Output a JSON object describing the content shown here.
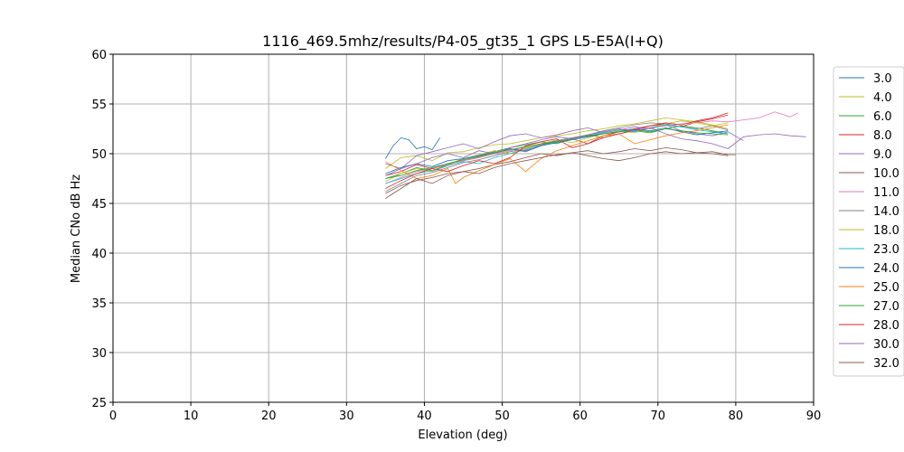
{
  "chart_data": {
    "type": "line",
    "title": "1116_469.5mhz/results/P4-05_gt35_1 GPS L5-E5A(I+Q)",
    "xlabel": "Elevation (deg)",
    "ylabel": "Median CNo dB Hz",
    "xlim": [
      0,
      90
    ],
    "ylim": [
      25,
      60
    ],
    "xticks": [
      0,
      10,
      20,
      30,
      40,
      50,
      60,
      70,
      80,
      90
    ],
    "yticks": [
      25,
      30,
      35,
      40,
      45,
      50,
      55,
      60
    ],
    "grid": true,
    "legend_position": "right",
    "series": [
      {
        "name": "3.0",
        "color": "#1f77b4",
        "x": [
          35,
          36,
          37,
          38,
          39,
          40,
          41,
          42
        ],
        "y": [
          49.5,
          50.8,
          51.6,
          51.4,
          50.5,
          50.7,
          50.4,
          51.6
        ]
      },
      {
        "name": "4.0",
        "color": "#bcbd22",
        "x": [
          35,
          37,
          39,
          41,
          43,
          45,
          47,
          49,
          51,
          53,
          55,
          57,
          59,
          61,
          63,
          65,
          67,
          69,
          71,
          73,
          75,
          77,
          79
        ],
        "y": [
          48.5,
          49.6,
          49.8,
          49.3,
          50.1,
          50.2,
          50.6,
          50.9,
          51.0,
          51.3,
          51.6,
          51.8,
          52.0,
          52.3,
          52.5,
          52.8,
          53.0,
          53.3,
          53.6,
          53.4,
          53.2,
          52.9,
          52.5
        ]
      },
      {
        "name": "6.0",
        "color": "#2ca02c",
        "x": [
          35,
          37,
          39,
          41,
          43,
          45,
          47,
          49,
          51,
          53,
          55,
          57,
          59,
          61,
          63,
          65,
          67,
          69,
          71,
          73,
          75,
          77,
          79
        ],
        "y": [
          47.5,
          48.0,
          48.6,
          48.3,
          48.9,
          49.5,
          49.8,
          50.2,
          50.6,
          50.9,
          51.2,
          51.0,
          51.5,
          51.9,
          51.6,
          52.0,
          52.3,
          52.1,
          52.5,
          52.8,
          52.6,
          52.3,
          52.0
        ]
      },
      {
        "name": "8.0",
        "color": "#d62728",
        "x": [
          35,
          37,
          39,
          41,
          43,
          45,
          47,
          49,
          51,
          53,
          55,
          57,
          59,
          61,
          63,
          65,
          67,
          69,
          71,
          73,
          75,
          77,
          79
        ],
        "y": [
          47.8,
          48.2,
          48.9,
          48.5,
          49.0,
          49.3,
          49.6,
          50.0,
          50.5,
          50.3,
          50.9,
          51.2,
          51.5,
          51.0,
          51.8,
          52.2,
          52.5,
          52.8,
          53.0,
          52.7,
          53.2,
          53.5,
          53.9
        ]
      },
      {
        "name": "9.0",
        "color": "#9467bd",
        "x": [
          35,
          37,
          39,
          41,
          43,
          45,
          47,
          49,
          51,
          53,
          55,
          57,
          59,
          61,
          63,
          65,
          67,
          69,
          71,
          73,
          75,
          77,
          79,
          81
        ],
        "y": [
          49.0,
          48.5,
          49.8,
          50.2,
          50.6,
          51.0,
          50.5,
          51.2,
          51.8,
          52.0,
          51.6,
          51.9,
          52.3,
          52.6,
          52.1,
          52.4,
          52.7,
          52.5,
          52.9,
          52.3,
          52.0,
          51.8,
          52.2,
          51.3
        ]
      },
      {
        "name": "10.0",
        "color": "#8c564b",
        "x": [
          35,
          37,
          39,
          41,
          43,
          45,
          47,
          49,
          51,
          53,
          55,
          57,
          59,
          61,
          63,
          65,
          67,
          69,
          71,
          73,
          75,
          77,
          79
        ],
        "y": [
          46.0,
          46.8,
          47.3,
          47.6,
          48.0,
          48.2,
          48.5,
          48.9,
          49.2,
          49.6,
          50.0,
          49.8,
          50.1,
          50.3,
          50.0,
          50.2,
          50.5,
          50.3,
          50.6,
          50.4,
          50.1,
          50.0,
          49.8
        ]
      },
      {
        "name": "11.0",
        "color": "#e377c2",
        "x": [
          35,
          37,
          39,
          41,
          43,
          45,
          47,
          49,
          51,
          53,
          55,
          57,
          59,
          61,
          63,
          65,
          67,
          69,
          71,
          73,
          75,
          77,
          79,
          81,
          83,
          85,
          87,
          88
        ],
        "y": [
          47.0,
          47.6,
          48.2,
          48.5,
          48.9,
          49.3,
          49.6,
          50.0,
          50.3,
          50.7,
          51.0,
          51.3,
          51.6,
          51.8,
          52.0,
          52.3,
          52.5,
          52.6,
          52.8,
          53.0,
          53.1,
          53.3,
          53.2,
          53.4,
          53.6,
          54.2,
          53.7,
          54.1
        ]
      },
      {
        "name": "14.0",
        "color": "#7f7f7f",
        "x": [
          35,
          37,
          39,
          41,
          43,
          45,
          47,
          49,
          51,
          53,
          55,
          57,
          59,
          61,
          63,
          65,
          67,
          69,
          71,
          73,
          75,
          77,
          79
        ],
        "y": [
          46.2,
          47.0,
          47.8,
          48.1,
          48.6,
          49.1,
          49.4,
          49.8,
          50.2,
          50.5,
          50.9,
          51.3,
          51.6,
          51.9,
          52.3,
          52.6,
          52.9,
          53.1,
          53.0,
          52.7,
          52.5,
          52.8,
          52.4
        ]
      },
      {
        "name": "18.0",
        "color": "#bcbd22",
        "x": [
          35,
          37,
          39,
          41,
          43,
          45,
          47,
          49,
          51,
          53,
          55,
          57,
          59,
          61,
          63,
          65,
          67,
          69,
          71,
          73,
          75,
          77,
          79
        ],
        "y": [
          47.2,
          48.0,
          48.5,
          48.2,
          48.8,
          49.5,
          49.9,
          50.3,
          50.0,
          50.6,
          51.0,
          51.4,
          51.1,
          51.6,
          52.0,
          52.3,
          52.1,
          52.6,
          53.0,
          53.3,
          53.1,
          52.8,
          53.1
        ]
      },
      {
        "name": "23.0",
        "color": "#17becf",
        "x": [
          35,
          37,
          39,
          41,
          43,
          45,
          47,
          49,
          51,
          53,
          55,
          57,
          59,
          61,
          63,
          65,
          67,
          69,
          71,
          73,
          75,
          77,
          79
        ],
        "y": [
          47.0,
          47.5,
          48.0,
          48.3,
          48.8,
          49.2,
          49.0,
          49.6,
          50.0,
          50.4,
          50.8,
          51.2,
          51.5,
          51.8,
          52.1,
          52.4,
          52.2,
          52.6,
          52.9,
          52.7,
          52.4,
          52.2,
          52.0
        ]
      },
      {
        "name": "24.0",
        "color": "#1f77b4",
        "x": [
          35,
          37,
          39,
          41,
          43,
          45,
          47,
          49,
          51,
          53,
          55,
          57,
          59,
          61,
          63,
          65,
          67,
          69,
          71,
          73,
          75,
          77,
          79
        ],
        "y": [
          48.0,
          48.6,
          49.0,
          48.7,
          49.3,
          49.5,
          49.8,
          50.1,
          50.5,
          50.2,
          50.8,
          51.1,
          51.4,
          51.7,
          52.0,
          52.2,
          52.5,
          52.3,
          52.6,
          52.2,
          51.9,
          52.1,
          52.3
        ]
      },
      {
        "name": "25.0",
        "color": "#ff7f0e",
        "x": [
          35,
          37,
          39,
          41,
          43,
          44,
          45,
          47,
          49,
          51,
          53,
          55,
          57,
          59,
          61,
          63,
          65,
          67,
          69,
          71,
          73,
          75,
          77,
          79
        ],
        "y": [
          49.2,
          48.3,
          47.5,
          47.8,
          48.5,
          47.0,
          47.6,
          48.3,
          48.9,
          49.5,
          48.2,
          49.5,
          50.3,
          50.8,
          51.3,
          51.8,
          52.0,
          51.0,
          51.4,
          51.8,
          52.1,
          52.3,
          52.6,
          52.9
        ]
      },
      {
        "name": "27.0",
        "color": "#2ca02c",
        "x": [
          35,
          37,
          39,
          41,
          43,
          45,
          47,
          49,
          51,
          53,
          55,
          57,
          59,
          61,
          63,
          65,
          67,
          69,
          71,
          73,
          75,
          77,
          79
        ],
        "y": [
          47.5,
          47.8,
          48.3,
          48.6,
          49.0,
          49.4,
          49.7,
          50.1,
          50.4,
          50.7,
          51.0,
          51.2,
          51.5,
          51.8,
          52.0,
          52.2,
          52.4,
          52.2,
          52.5,
          52.3,
          52.1,
          52.0,
          51.9
        ]
      },
      {
        "name": "28.0",
        "color": "#d62728",
        "x": [
          35,
          37,
          39,
          41,
          43,
          45,
          47,
          49,
          51,
          53,
          55,
          57,
          59,
          61,
          63,
          65,
          67,
          69,
          71,
          73,
          75,
          77,
          79
        ],
        "y": [
          46.5,
          47.3,
          48.0,
          48.5,
          48.2,
          48.8,
          49.3,
          49.0,
          49.6,
          50.8,
          51.2,
          51.5,
          50.6,
          51.0,
          51.6,
          52.0,
          52.4,
          52.8,
          53.1,
          52.9,
          53.3,
          53.6,
          54.1
        ]
      },
      {
        "name": "30.0",
        "color": "#9467bd",
        "x": [
          35,
          37,
          39,
          41,
          43,
          45,
          47,
          49,
          51,
          53,
          55,
          57,
          59,
          61,
          63,
          65,
          67,
          69,
          71,
          73,
          75,
          77,
          79,
          81,
          83,
          85,
          87,
          89
        ],
        "y": [
          47.8,
          48.5,
          49.0,
          49.6,
          50.0,
          49.6,
          50.3,
          50.0,
          50.6,
          51.0,
          51.4,
          51.7,
          51.5,
          51.9,
          52.2,
          52.5,
          52.3,
          52.6,
          52.0,
          51.5,
          51.3,
          51.0,
          50.5,
          51.7,
          51.9,
          52.0,
          51.8,
          51.7
        ]
      },
      {
        "name": "32.0",
        "color": "#8c564b",
        "x": [
          35,
          37,
          39,
          41,
          43,
          45,
          47,
          49,
          51,
          53,
          55,
          57,
          59,
          61,
          63,
          65,
          67,
          69,
          71,
          73,
          75,
          77,
          79,
          80
        ],
        "y": [
          45.5,
          46.5,
          47.5,
          47.0,
          47.8,
          48.2,
          48.0,
          48.6,
          49.0,
          49.3,
          49.6,
          49.9,
          50.1,
          49.8,
          49.5,
          49.3,
          49.6,
          50.0,
          50.2,
          50.0,
          50.1,
          50.2,
          49.9,
          49.9
        ]
      }
    ]
  }
}
